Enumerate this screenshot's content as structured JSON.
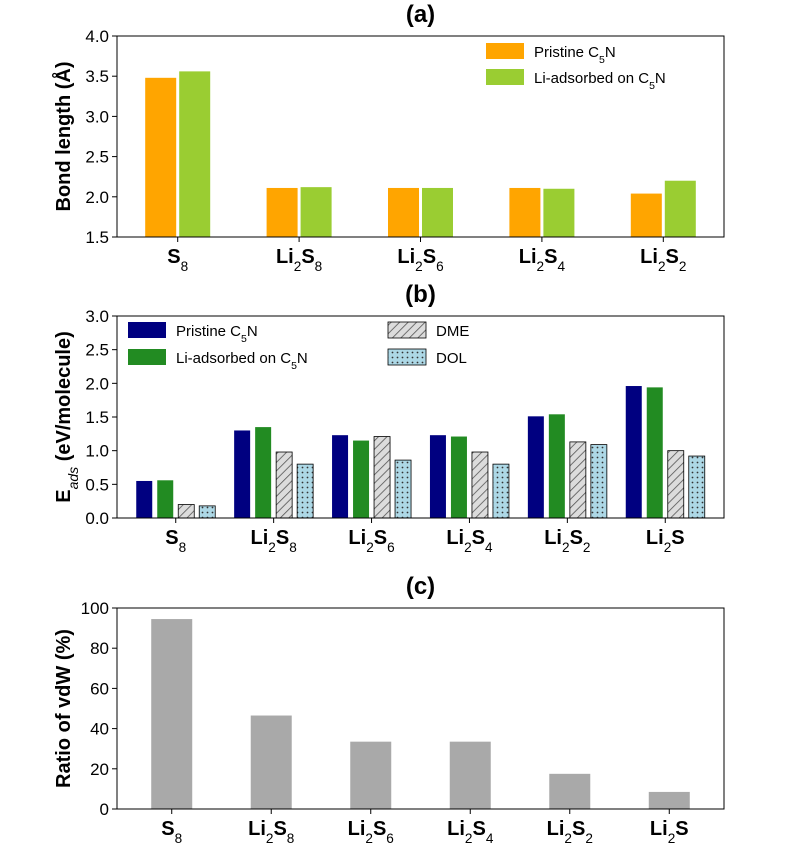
{
  "chart_data": [
    {
      "type": "bar",
      "title": "(a)",
      "ylabel": "Bond length (Å)",
      "ylim": [
        1.5,
        4.0
      ],
      "yticks": [
        "1.5",
        "2.0",
        "2.5",
        "3.0",
        "3.5",
        "4.0"
      ],
      "categories": [
        "S8",
        "Li2S8",
        "Li2S6",
        "Li2S4",
        "Li2S2"
      ],
      "series": [
        {
          "name": "Pristine C5N",
          "color": "#ffa500",
          "values": [
            3.48,
            2.11,
            2.11,
            2.11,
            2.04
          ]
        },
        {
          "name": "Li-adsorbed on C5N",
          "color": "#9acd32",
          "values": [
            3.56,
            2.12,
            2.11,
            2.1,
            2.2
          ]
        }
      ],
      "legend": "top-right"
    },
    {
      "type": "bar",
      "title": "(b)",
      "ylabel": "Eads (eV/molecule)",
      "ylim": [
        0.0,
        3.0
      ],
      "yticks": [
        "0.0",
        "0.5",
        "1.0",
        "1.5",
        "2.0",
        "2.5",
        "3.0"
      ],
      "categories": [
        "S8",
        "Li2S8",
        "Li2S6",
        "Li2S4",
        "Li2S2",
        "Li2S"
      ],
      "series": [
        {
          "name": "Pristine C5N",
          "color": "#000080",
          "values": [
            0.55,
            1.3,
            1.23,
            1.23,
            1.51,
            1.96
          ]
        },
        {
          "name": "Li-adsorbed on C5N",
          "color": "#228b22",
          "values": [
            0.56,
            1.35,
            1.15,
            1.21,
            1.54,
            1.94
          ]
        },
        {
          "name": "DME",
          "color": "#dcdcdc",
          "values": [
            0.2,
            0.98,
            1.21,
            0.98,
            1.13,
            1.0
          ]
        },
        {
          "name": "DOL",
          "color": "#add8e6",
          "values": [
            0.18,
            0.8,
            0.86,
            0.8,
            1.09,
            0.92
          ]
        }
      ],
      "legend": "top-left"
    },
    {
      "type": "bar",
      "title": "(c)",
      "ylabel": "Ratio of vdW (%)",
      "ylim": [
        0,
        100
      ],
      "yticks": [
        "0",
        "20",
        "40",
        "60",
        "80",
        "100"
      ],
      "categories": [
        "S8",
        "Li2S8",
        "Li2S6",
        "Li2S4",
        "Li2S2",
        "Li2S"
      ],
      "series": [
        {
          "name": "vdW ratio",
          "color": "#a9a9a9",
          "values": [
            94.5,
            46.5,
            33.5,
            33.5,
            17.5,
            8.5
          ]
        }
      ]
    }
  ]
}
